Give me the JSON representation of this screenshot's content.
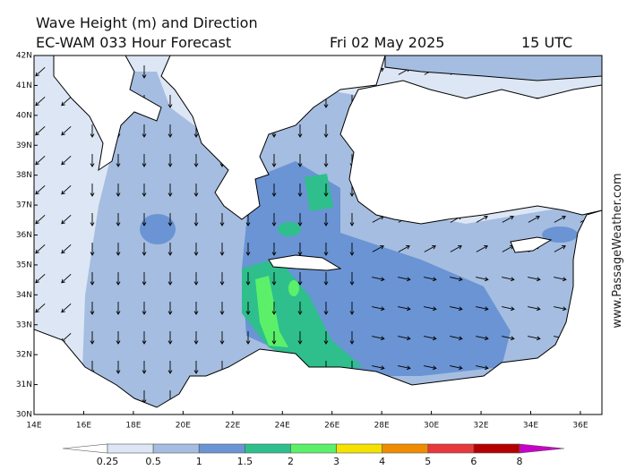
{
  "header": {
    "title": "Wave Height (m) and Direction",
    "model": "EC-WAM 033 Hour Forecast",
    "date": "Fri 02 May 2025",
    "time": "15 UTC"
  },
  "axes": {
    "latitude_labels": [
      "42N",
      "41N",
      "40N",
      "39N",
      "38N",
      "37N",
      "36N",
      "35N",
      "34N",
      "33N",
      "32N",
      "31N",
      "30N"
    ],
    "longitude_labels": [
      "14E",
      "16E",
      "18E",
      "20E",
      "22E",
      "24E",
      "26E",
      "28E",
      "30E",
      "32E",
      "34E",
      "36E"
    ]
  },
  "legend": {
    "labels": [
      "0.25",
      "0.5",
      "1",
      "1.5",
      "2",
      "3",
      "4",
      "5",
      "6",
      "8"
    ]
  },
  "watermark": "www.PassageWeather.com"
}
